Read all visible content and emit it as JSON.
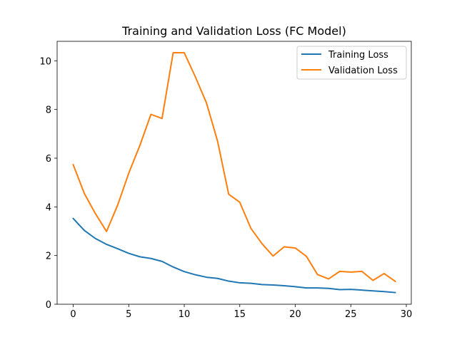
{
  "chart_data": {
    "type": "line",
    "title": "Training and Validation Loss (FC Model)",
    "xlabel": "",
    "ylabel": "",
    "xlim": [
      -1.45,
      30.45
    ],
    "ylim": [
      0,
      10.8
    ],
    "xticks": [
      0,
      5,
      10,
      15,
      20,
      25,
      30
    ],
    "yticks": [
      0,
      2,
      4,
      6,
      8,
      10
    ],
    "grid": false,
    "legend_position": "top-right",
    "x": [
      0,
      1,
      2,
      3,
      4,
      5,
      6,
      7,
      8,
      9,
      10,
      11,
      12,
      13,
      14,
      15,
      16,
      17,
      18,
      19,
      20,
      21,
      22,
      23,
      24,
      25,
      26,
      27,
      28,
      29
    ],
    "series": [
      {
        "name": "Training Loss",
        "color": "#1f77b4",
        "values": [
          3.52,
          3.03,
          2.7,
          2.46,
          2.28,
          2.09,
          1.95,
          1.88,
          1.76,
          1.53,
          1.34,
          1.21,
          1.11,
          1.06,
          0.95,
          0.88,
          0.86,
          0.81,
          0.79,
          0.76,
          0.72,
          0.67,
          0.67,
          0.65,
          0.6,
          0.61,
          0.58,
          0.55,
          0.52,
          0.48
        ]
      },
      {
        "name": "Validation Loss",
        "color": "#ff7f0e",
        "values": [
          5.73,
          4.55,
          3.72,
          2.99,
          4.07,
          5.38,
          6.52,
          7.8,
          7.63,
          10.33,
          10.33,
          9.34,
          8.27,
          6.7,
          4.52,
          4.19,
          3.12,
          2.49,
          1.98,
          2.36,
          2.31,
          1.97,
          1.22,
          1.04,
          1.35,
          1.32,
          1.35,
          0.98,
          1.26,
          0.94
        ]
      }
    ]
  }
}
